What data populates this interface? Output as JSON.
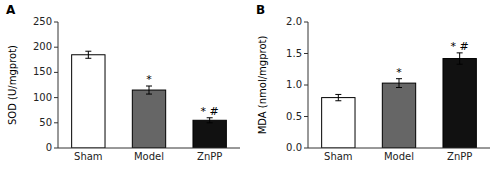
{
  "chart_data": [
    {
      "type": "bar",
      "title": "A",
      "categories": [
        "Sham",
        "Model",
        "ZnPP"
      ],
      "values": [
        185,
        115,
        55
      ],
      "errors": [
        7,
        8,
        5
      ],
      "colors": [
        "white",
        "#666666",
        "#111111"
      ],
      "ylabel": "SOD (U/mgprot)",
      "ylim": [
        0,
        250
      ],
      "yticks": [
        0,
        50,
        100,
        150,
        200,
        250
      ],
      "grid": false,
      "annotations": [
        {
          "text": "*",
          "x": "Model",
          "y": 127
        },
        {
          "text": "* #",
          "x": "ZnPP",
          "y": 63
        }
      ]
    },
    {
      "type": "bar",
      "title": "B",
      "categories": [
        "Sham",
        "Model",
        "ZnPP"
      ],
      "values": [
        0.8,
        1.03,
        1.42
      ],
      "errors": [
        0.05,
        0.07,
        0.09
      ],
      "colors": [
        "white",
        "#666666",
        "#111111"
      ],
      "ylabel": "MDA (nmol/mgprot)",
      "ylim": [
        0,
        2.0
      ],
      "yticks": [
        {
          "value": 0.0,
          "label": "0.0"
        },
        0.5,
        {
          "value": 1.0,
          "label": "1.0"
        },
        1.5,
        {
          "value": 2.0,
          "label": "2.0"
        }
      ],
      "grid": false,
      "annotations": [
        {
          "text": "*",
          "x": "Model",
          "y": 1.13
        },
        {
          "text": "* #",
          "x": "ZnPP",
          "y": 1.54
        }
      ]
    }
  ]
}
